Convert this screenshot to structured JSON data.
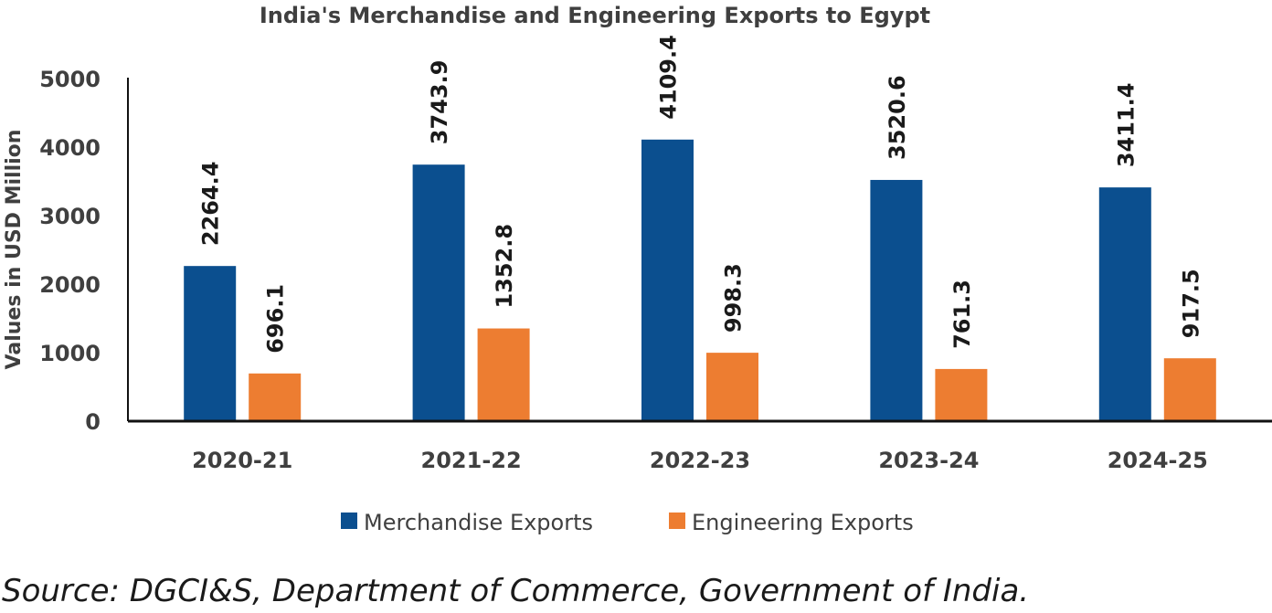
{
  "chart_data": {
    "type": "bar",
    "title": "India's Merchandise and Engineering Exports to Egypt",
    "xlabel": "",
    "ylabel": "Values in USD Million",
    "categories": [
      "2020-21",
      "2021-22",
      "2022-23",
      "2023-24",
      "2024-25"
    ],
    "series": [
      {
        "name": "Merchandise Exports",
        "color": "#0b4f8f",
        "values": [
          2264.4,
          3743.9,
          4109.4,
          3520.6,
          3411.4
        ],
        "labels": [
          "2264.4",
          "3743.9",
          "4109.4",
          "3520.6",
          "3411.4"
        ]
      },
      {
        "name": "Engineering Exports",
        "color": "#ed7d31",
        "values": [
          696.1,
          1352.8,
          998.3,
          761.3,
          917.5
        ],
        "labels": [
          "696.1",
          "1352.8",
          "998.3",
          "761.3",
          "917.5"
        ]
      }
    ],
    "ylim": [
      0,
      5000
    ],
    "yticks": [
      0,
      1000,
      2000,
      3000,
      4000,
      5000
    ],
    "grid": false,
    "legend_position": "bottom-center"
  },
  "source_note": "Source: DGCI&S, Department of Commerce, Government of India."
}
